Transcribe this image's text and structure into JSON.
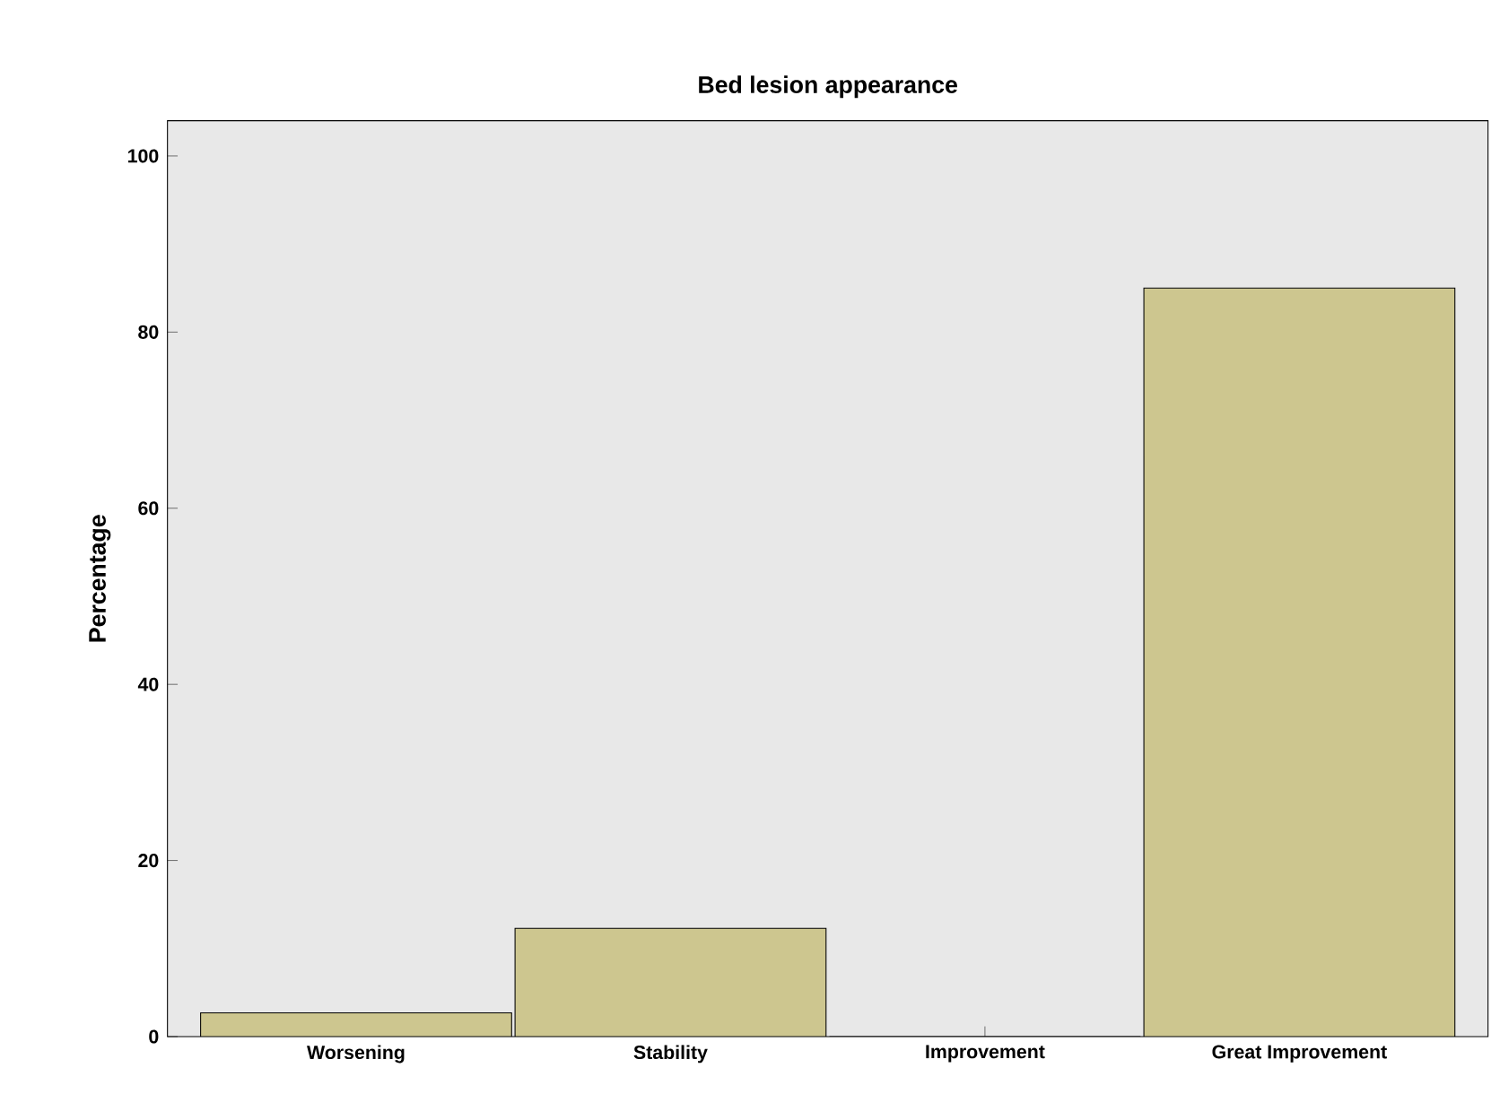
{
  "chart_data": {
    "type": "bar",
    "title": "Bed lesion appearance",
    "ylabel": "Percentage",
    "categories": [
      "Worsening",
      "Stability",
      "Improvement",
      "Great Improvement"
    ],
    "values": [
      2.7,
      12.3,
      0,
      85
    ],
    "color": "#cdc68f",
    "ylim": [
      0,
      104
    ],
    "yticks": [
      0,
      20,
      40,
      60,
      80,
      100
    ],
    "grid": false
  }
}
